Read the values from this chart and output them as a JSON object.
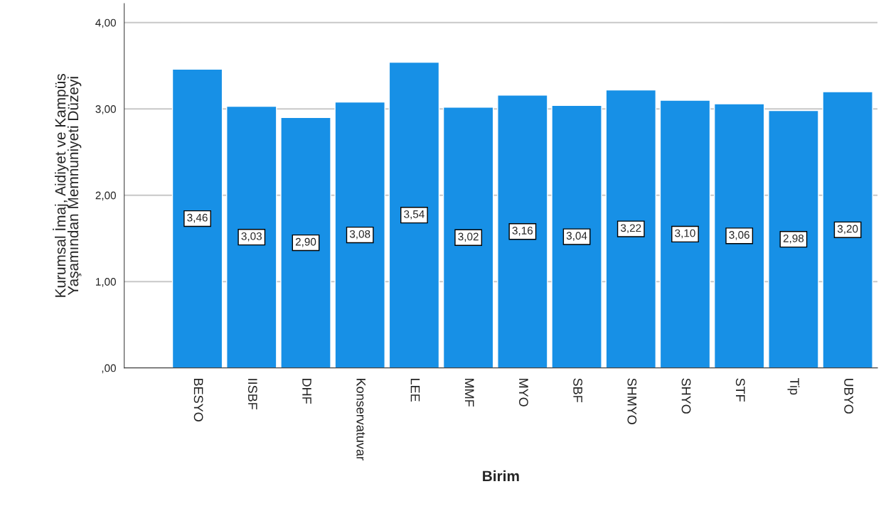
{
  "chart_data": {
    "type": "bar",
    "xlabel": "Birim",
    "ylabel": "Kurumsal İmaj, Aidiyet ve Kampüs\nYaşamından Memnuniyeti Düzeyi",
    "categories": [
      "BESYO",
      "IISBF",
      "DHF",
      "Konservatuvar",
      "LEE",
      "MMF",
      "MYO",
      "SBF",
      "SHMYO",
      "SHYO",
      "STF",
      "Tip",
      "UBYO"
    ],
    "values": [
      3.46,
      3.03,
      2.9,
      3.08,
      3.54,
      3.02,
      3.16,
      3.04,
      3.22,
      3.1,
      3.06,
      2.98,
      3.2
    ],
    "value_labels": [
      "3,46",
      "3,03",
      "2,90",
      "3,08",
      "3,54",
      "3,02",
      "3,16",
      "3,04",
      "3,22",
      "3,10",
      "3,06",
      "2,98",
      "3,20"
    ],
    "color": "#1790e6",
    "ylim": [
      0,
      4.22
    ],
    "yticks": [
      {
        "value": 0,
        "label": ",00"
      },
      {
        "value": 1,
        "label": "1,00"
      },
      {
        "value": 2,
        "label": "2,00"
      },
      {
        "value": 3,
        "label": "3,00"
      },
      {
        "value": 4,
        "label": "4,00"
      }
    ],
    "grid": "y"
  }
}
